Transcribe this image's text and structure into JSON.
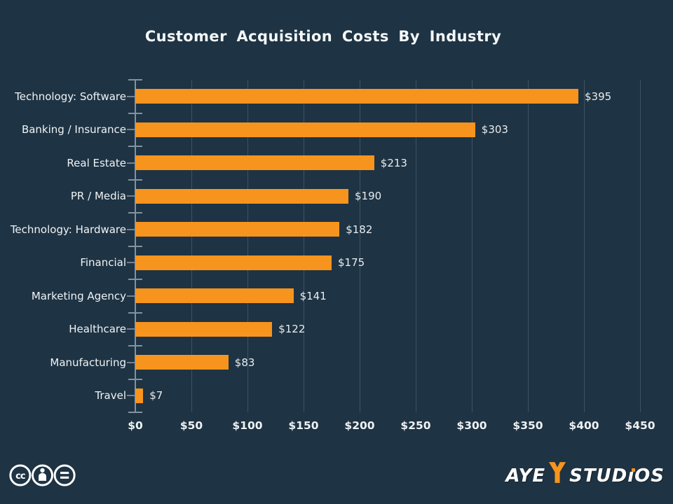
{
  "title": "Customer Acquisition Costs By Industry",
  "chart_data": {
    "type": "bar",
    "orientation": "horizontal",
    "title": "Customer Acquisition Costs By Industry",
    "categories": [
      "Technology: Software",
      "Banking / Insurance",
      "Real Estate",
      "PR / Media",
      "Technology: Hardware",
      "Financial",
      "Marketing Agency",
      "Healthcare",
      "Manufacturing",
      "Travel"
    ],
    "values": [
      395,
      303,
      213,
      190,
      182,
      175,
      141,
      122,
      83,
      7
    ],
    "value_labels": [
      "$395",
      "$303",
      "$213",
      "$190",
      "$182",
      "$175",
      "$141",
      "$122",
      "$83",
      "$7"
    ],
    "x_ticks": [
      "$0",
      "$50",
      "$100",
      "$150",
      "$200",
      "$250",
      "$300",
      "$350",
      "$400",
      "$450"
    ],
    "x_tick_values": [
      0,
      50,
      100,
      150,
      200,
      250,
      300,
      350,
      400,
      450
    ],
    "xlim": [
      0,
      450
    ],
    "xlabel": "",
    "ylabel": "",
    "grid": true,
    "legend": false,
    "bar_color": "#f7941d",
    "background_color": "#1e3343",
    "text_color": "#f0f4f6"
  },
  "footer": {
    "license_icons": [
      "cc-icon",
      "cc-by-icon",
      "cc-nd-icon"
    ],
    "logo": {
      "prefix": "AYE",
      "mid": "STUD",
      "i_char": "ı",
      "suffix": "OS",
      "accent_color": "#f7941d"
    }
  }
}
